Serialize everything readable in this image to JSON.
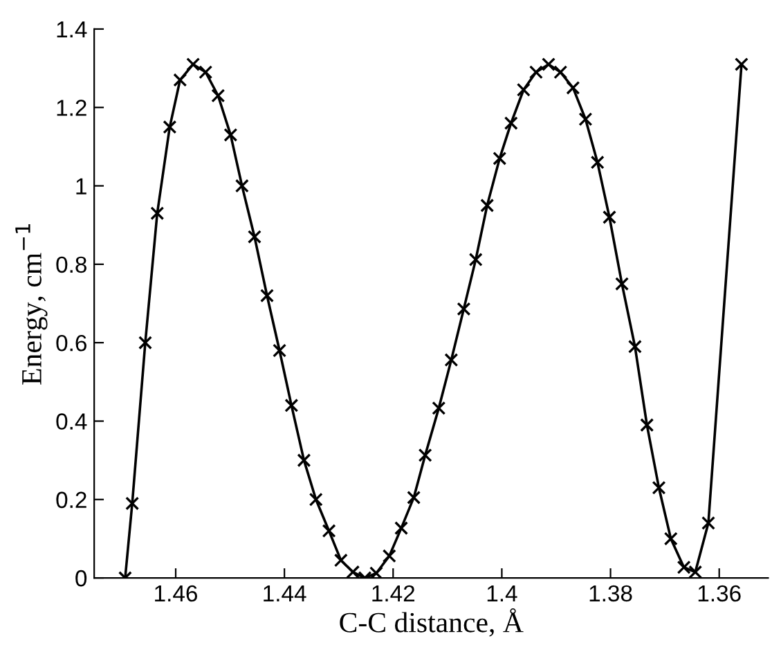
{
  "chart_data": {
    "type": "line",
    "xlabel": "C-C distance, Å",
    "ylabel": "Energy, cm$^{−1}$",
    "x": [
      1.4693,
      1.468,
      1.4656,
      1.4634,
      1.4611,
      1.4592,
      1.4568,
      1.4545,
      1.4522,
      1.4499,
      1.4478,
      1.4455,
      1.4432,
      1.4409,
      1.4387,
      1.4364,
      1.4342,
      1.4318,
      1.4296,
      1.4274,
      1.4252,
      1.4231,
      1.4207,
      1.4185,
      1.4162,
      1.4141,
      1.4116,
      1.4093,
      1.407,
      1.4048,
      1.4027,
      1.4004,
      1.3983,
      1.396,
      1.3937,
      1.3914,
      1.3892,
      1.3869,
      1.3846,
      1.3824,
      1.3802,
      1.3779,
      1.3755,
      1.3733,
      1.3711,
      1.3689,
      1.3665,
      1.3644,
      1.362,
      1.3559
    ],
    "series": [
      {
        "color": "#000000",
        "values": [
          0,
          0.19,
          0.6,
          0.93,
          1.15,
          1.27,
          1.31,
          1.29,
          1.23,
          1.13,
          1.0,
          0.87,
          0.72,
          0.58,
          0.44,
          0.3,
          0.2,
          0.12,
          0.045,
          0.015,
          0,
          0.012,
          0.056,
          0.127,
          0.205,
          0.313,
          0.433,
          0.556,
          0.686,
          0.812,
          0.95,
          1.07,
          1.16,
          1.245,
          1.29,
          1.31,
          1.29,
          1.25,
          1.17,
          1.06,
          0.92,
          0.75,
          0.59,
          0.39,
          0.23,
          0.1,
          0.027,
          0.015,
          0.14,
          1.31
        ]
      }
    ],
    "xlim": [
      1.475,
      1.351
    ],
    "xticks": [
      1.46,
      1.44,
      1.42,
      1.4,
      1.38,
      1.36
    ],
    "ylim": [
      0,
      1.4
    ],
    "yticks": [
      0,
      0.2,
      0.4,
      0.6,
      0.8,
      1,
      1.2,
      1.4
    ],
    "marker": "cross",
    "line_style": "solid",
    "grid": false
  }
}
